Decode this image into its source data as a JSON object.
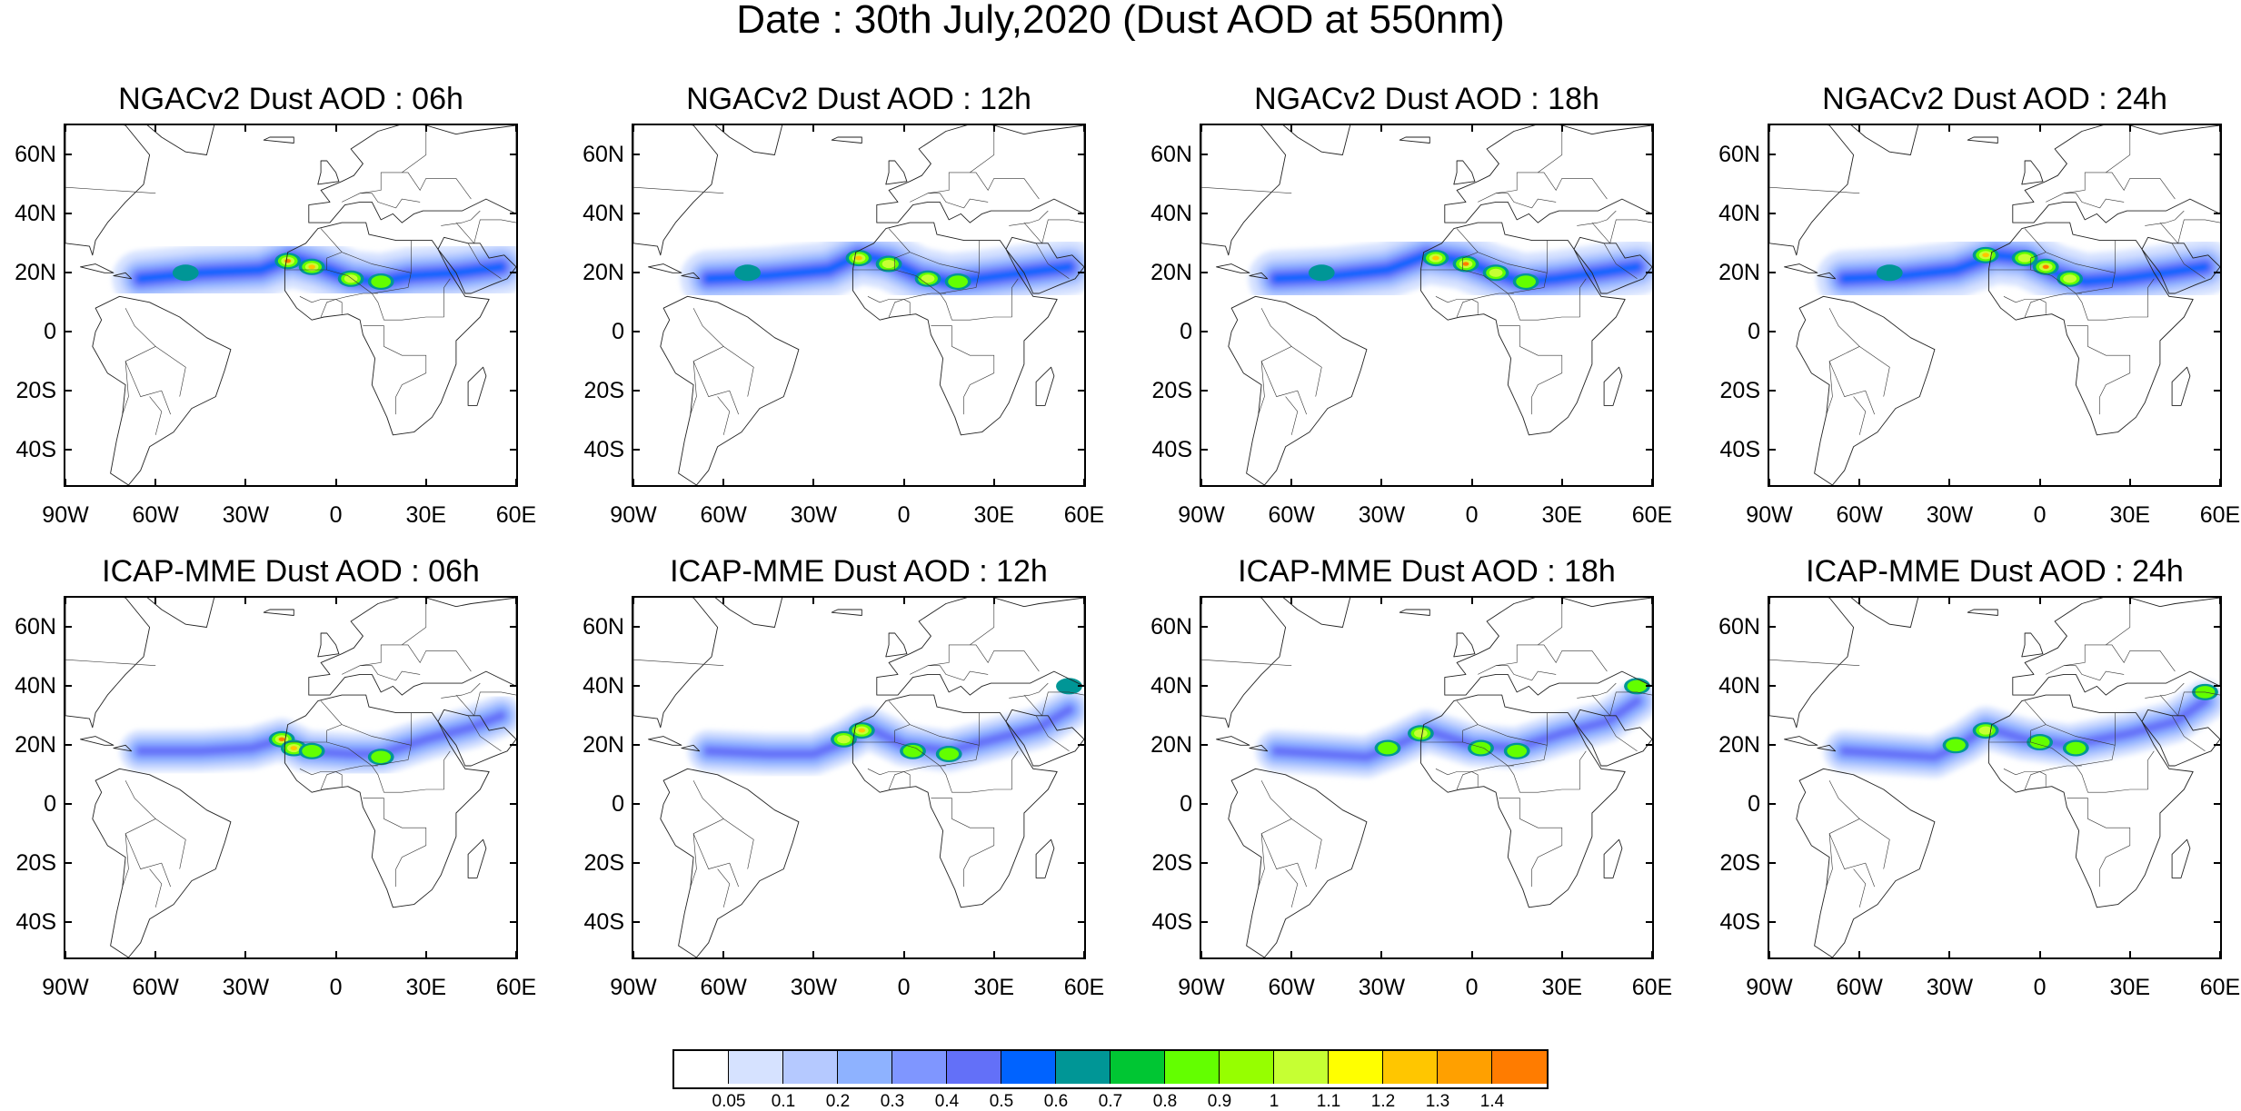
{
  "title": "Date : 30th July,2020 (Dust AOD at 550nm)",
  "axes": {
    "lat_ticks": [
      {
        "value": 60,
        "label": "60N"
      },
      {
        "value": 40,
        "label": "40N"
      },
      {
        "value": 20,
        "label": "20N"
      },
      {
        "value": 0,
        "label": "0"
      },
      {
        "value": -20,
        "label": "20S"
      },
      {
        "value": -40,
        "label": "40S"
      }
    ],
    "lon_ticks": [
      {
        "value": -90,
        "label": "90W"
      },
      {
        "value": -60,
        "label": "60W"
      },
      {
        "value": -30,
        "label": "30W"
      },
      {
        "value": 0,
        "label": "0"
      },
      {
        "value": 30,
        "label": "30E"
      },
      {
        "value": 60,
        "label": "60E"
      }
    ],
    "lat_range": [
      -52,
      70
    ],
    "lon_range": [
      -90,
      60
    ]
  },
  "panels": [
    {
      "title": "NGACv2 Dust AOD : 06h",
      "model": "NGACv2",
      "hour": "06h"
    },
    {
      "title": "NGACv2 Dust AOD : 12h",
      "model": "NGACv2",
      "hour": "12h"
    },
    {
      "title": "NGACv2 Dust AOD : 18h",
      "model": "NGACv2",
      "hour": "18h"
    },
    {
      "title": "NGACv2 Dust AOD : 24h",
      "model": "NGACv2",
      "hour": "24h"
    },
    {
      "title": "ICAP-MME Dust AOD : 06h",
      "model": "ICAP-MME",
      "hour": "06h"
    },
    {
      "title": "ICAP-MME Dust AOD : 12h",
      "model": "ICAP-MME",
      "hour": "12h"
    },
    {
      "title": "ICAP-MME Dust AOD : 18h",
      "model": "ICAP-MME",
      "hour": "18h"
    },
    {
      "title": "ICAP-MME Dust AOD : 24h",
      "model": "ICAP-MME",
      "hour": "24h"
    }
  ],
  "colorbar": {
    "labels": [
      "0.05",
      "0.1",
      "0.2",
      "0.3",
      "0.4",
      "0.5",
      "0.6",
      "0.7",
      "0.8",
      "0.9",
      "1",
      "1.1",
      "1.2",
      "1.3",
      "1.4"
    ],
    "colors": [
      "#ffffff",
      "#d6e2ff",
      "#b5c9ff",
      "#8eb2ff",
      "#7f96ff",
      "#6370f8",
      "#0063ff",
      "#009696",
      "#00c633",
      "#63ff00",
      "#96ff00",
      "#c6ff33",
      "#ffff00",
      "#ffc600",
      "#ffa000",
      "#ff7c00",
      "#ff1900"
    ]
  },
  "plume_tracks": {
    "NGACv2": [
      [
        [
          -65,
          18
        ],
        [
          -45,
          20
        ],
        [
          -25,
          21
        ],
        [
          -15,
          25
        ],
        [
          -5,
          22
        ],
        [
          5,
          18
        ],
        [
          15,
          17
        ],
        [
          25,
          19
        ],
        [
          40,
          20
        ],
        [
          55,
          22
        ]
      ],
      [
        [
          -65,
          18
        ],
        [
          -45,
          19
        ],
        [
          -25,
          21
        ],
        [
          -15,
          26
        ],
        [
          -5,
          24
        ],
        [
          5,
          19
        ],
        [
          15,
          17
        ],
        [
          25,
          18
        ],
        [
          40,
          20
        ],
        [
          55,
          22
        ]
      ],
      [
        [
          -65,
          18
        ],
        [
          -45,
          19
        ],
        [
          -28,
          21
        ],
        [
          -15,
          26
        ],
        [
          -3,
          24
        ],
        [
          7,
          20
        ],
        [
          17,
          17
        ],
        [
          28,
          18
        ],
        [
          42,
          20
        ],
        [
          55,
          22
        ]
      ],
      [
        [
          -65,
          18
        ],
        [
          -45,
          19
        ],
        [
          -28,
          21
        ],
        [
          -15,
          26
        ],
        [
          -5,
          25
        ],
        [
          5,
          20
        ],
        [
          15,
          17
        ],
        [
          28,
          18
        ],
        [
          42,
          20
        ],
        [
          55,
          22
        ]
      ]
    ],
    "ICAP-MME": [
      [
        [
          -65,
          18
        ],
        [
          -45,
          18
        ],
        [
          -28,
          19
        ],
        [
          -18,
          22
        ],
        [
          -10,
          18
        ],
        [
          5,
          17
        ],
        [
          15,
          17
        ],
        [
          30,
          22
        ],
        [
          45,
          26
        ],
        [
          55,
          30
        ]
      ],
      [
        [
          -65,
          18
        ],
        [
          -45,
          17
        ],
        [
          -30,
          17
        ],
        [
          -20,
          21
        ],
        [
          -12,
          26
        ],
        [
          0,
          20
        ],
        [
          15,
          18
        ],
        [
          30,
          22
        ],
        [
          45,
          26
        ],
        [
          55,
          32
        ]
      ],
      [
        [
          -65,
          18
        ],
        [
          -50,
          17
        ],
        [
          -35,
          16
        ],
        [
          -25,
          20
        ],
        [
          -15,
          25
        ],
        [
          0,
          20
        ],
        [
          15,
          19
        ],
        [
          30,
          24
        ],
        [
          45,
          28
        ],
        [
          55,
          35
        ]
      ],
      [
        [
          -65,
          18
        ],
        [
          -50,
          17
        ],
        [
          -35,
          16
        ],
        [
          -25,
          21
        ],
        [
          -18,
          26
        ],
        [
          -5,
          22
        ],
        [
          10,
          20
        ],
        [
          30,
          24
        ],
        [
          45,
          28
        ],
        [
          55,
          35
        ]
      ]
    ]
  },
  "hotspots": {
    "NGACv2": [
      [
        {
          "lon": -16,
          "lat": 24,
          "level": 16
        },
        {
          "lon": -8,
          "lat": 22,
          "level": 13
        },
        {
          "lon": 5,
          "lat": 18,
          "level": 11
        },
        {
          "lon": 15,
          "lat": 17,
          "level": 10
        },
        {
          "lon": -50,
          "lat": 20,
          "level": 7
        }
      ],
      [
        {
          "lon": -15,
          "lat": 25,
          "level": 14
        },
        {
          "lon": -5,
          "lat": 23,
          "level": 12
        },
        {
          "lon": 8,
          "lat": 18,
          "level": 11
        },
        {
          "lon": 18,
          "lat": 17,
          "level": 10
        },
        {
          "lon": -52,
          "lat": 20,
          "level": 7
        }
      ],
      [
        {
          "lon": -12,
          "lat": 25,
          "level": 14
        },
        {
          "lon": -2,
          "lat": 23,
          "level": 16
        },
        {
          "lon": 8,
          "lat": 20,
          "level": 12
        },
        {
          "lon": 18,
          "lat": 17,
          "level": 10
        },
        {
          "lon": -50,
          "lat": 20,
          "level": 7
        }
      ],
      [
        {
          "lon": -18,
          "lat": 26,
          "level": 13
        },
        {
          "lon": -5,
          "lat": 25,
          "level": 12
        },
        {
          "lon": 2,
          "lat": 22,
          "level": 16
        },
        {
          "lon": 10,
          "lat": 18,
          "level": 12
        },
        {
          "lon": -50,
          "lat": 20,
          "level": 7
        }
      ]
    ],
    "ICAP-MME": [
      [
        {
          "lon": -18,
          "lat": 22,
          "level": 16
        },
        {
          "lon": -14,
          "lat": 19,
          "level": 13
        },
        {
          "lon": -8,
          "lat": 18,
          "level": 10
        },
        {
          "lon": 15,
          "lat": 16,
          "level": 9
        }
      ],
      [
        {
          "lon": -20,
          "lat": 22,
          "level": 12
        },
        {
          "lon": -14,
          "lat": 25,
          "level": 14
        },
        {
          "lon": 3,
          "lat": 18,
          "level": 9
        },
        {
          "lon": 15,
          "lat": 17,
          "level": 9
        },
        {
          "lon": 55,
          "lat": 40,
          "level": 7
        }
      ],
      [
        {
          "lon": -28,
          "lat": 19,
          "level": 10
        },
        {
          "lon": -17,
          "lat": 24,
          "level": 11
        },
        {
          "lon": 3,
          "lat": 19,
          "level": 9
        },
        {
          "lon": 15,
          "lat": 18,
          "level": 9
        },
        {
          "lon": 55,
          "lat": 40,
          "level": 9
        }
      ],
      [
        {
          "lon": -28,
          "lat": 20,
          "level": 10
        },
        {
          "lon": -18,
          "lat": 25,
          "level": 11
        },
        {
          "lon": 0,
          "lat": 21,
          "level": 9
        },
        {
          "lon": 12,
          "lat": 19,
          "level": 9
        },
        {
          "lon": 55,
          "lat": 38,
          "level": 9
        }
      ]
    ]
  },
  "coastlines": {
    "north_america": [
      [
        -90,
        70
      ],
      [
        -80,
        72
      ],
      [
        -70,
        70
      ],
      [
        -62,
        60
      ],
      [
        -64,
        50
      ],
      [
        -70,
        44
      ],
      [
        -76,
        37
      ],
      [
        -80,
        31
      ],
      [
        -81,
        26
      ],
      [
        -82,
        29
      ],
      [
        -90,
        30
      ],
      [
        -90,
        70
      ]
    ],
    "south_america": [
      [
        -80,
        8
      ],
      [
        -72,
        12
      ],
      [
        -62,
        10
      ],
      [
        -52,
        5
      ],
      [
        -43,
        -2
      ],
      [
        -35,
        -6
      ],
      [
        -37,
        -13
      ],
      [
        -40,
        -22
      ],
      [
        -48,
        -26
      ],
      [
        -54,
        -34
      ],
      [
        -62,
        -39
      ],
      [
        -65,
        -47
      ],
      [
        -69,
        -52
      ],
      [
        -75,
        -48
      ],
      [
        -73,
        -37
      ],
      [
        -71,
        -28
      ],
      [
        -70,
        -18
      ],
      [
        -76,
        -14
      ],
      [
        -81,
        -5
      ],
      [
        -80,
        0
      ],
      [
        -78,
        4
      ],
      [
        -80,
        8
      ]
    ],
    "greenland": [
      [
        -73,
        78
      ],
      [
        -55,
        77
      ],
      [
        -40,
        72
      ],
      [
        -43,
        60
      ],
      [
        -50,
        61
      ],
      [
        -58,
        66
      ],
      [
        -65,
        72
      ],
      [
        -73,
        78
      ]
    ],
    "africa": [
      [
        -17,
        21
      ],
      [
        -16,
        27
      ],
      [
        -10,
        30
      ],
      [
        -6,
        35
      ],
      [
        2,
        37
      ],
      [
        10,
        37
      ],
      [
        11,
        33
      ],
      [
        20,
        31
      ],
      [
        32,
        31
      ],
      [
        34,
        28
      ],
      [
        38,
        20
      ],
      [
        43,
        12
      ],
      [
        51,
        11
      ],
      [
        48,
        5
      ],
      [
        40,
        -3
      ],
      [
        40,
        -11
      ],
      [
        35,
        -24
      ],
      [
        32,
        -29
      ],
      [
        26,
        -34
      ],
      [
        19,
        -35
      ],
      [
        17,
        -29
      ],
      [
        12,
        -18
      ],
      [
        13,
        -9
      ],
      [
        9,
        -1
      ],
      [
        8,
        4
      ],
      [
        4,
        6
      ],
      [
        -4,
        5
      ],
      [
        -8,
        4
      ],
      [
        -13,
        8
      ],
      [
        -17,
        14
      ],
      [
        -17,
        21
      ]
    ],
    "europe": [
      [
        -9,
        37
      ],
      [
        -9,
        43
      ],
      [
        -2,
        44
      ],
      [
        -5,
        48
      ],
      [
        2,
        51
      ],
      [
        6,
        53
      ],
      [
        9,
        57
      ],
      [
        5,
        62
      ],
      [
        14,
        68
      ],
      [
        24,
        71
      ],
      [
        30,
        70
      ],
      [
        40,
        67
      ],
      [
        45,
        68
      ],
      [
        60,
        70
      ],
      [
        60,
        40
      ],
      [
        50,
        45
      ],
      [
        42,
        41
      ],
      [
        36,
        41
      ],
      [
        29,
        41
      ],
      [
        26,
        40
      ],
      [
        22,
        37
      ],
      [
        19,
        40
      ],
      [
        15,
        38
      ],
      [
        12,
        44
      ],
      [
        8,
        44
      ],
      [
        3,
        43
      ],
      [
        -2,
        37
      ],
      [
        -9,
        37
      ]
    ],
    "arabia": [
      [
        34,
        28
      ],
      [
        36,
        32
      ],
      [
        44,
        30
      ],
      [
        48,
        30
      ],
      [
        51,
        25
      ],
      [
        56,
        26
      ],
      [
        60,
        22
      ],
      [
        57,
        18
      ],
      [
        52,
        16
      ],
      [
        45,
        13
      ],
      [
        43,
        13
      ],
      [
        40,
        20
      ],
      [
        34,
        28
      ]
    ],
    "uk": [
      [
        -6,
        50
      ],
      [
        1,
        51
      ],
      [
        0,
        54
      ],
      [
        -3,
        58
      ],
      [
        -5,
        58
      ],
      [
        -5,
        54
      ],
      [
        -6,
        50
      ]
    ],
    "iceland": [
      [
        -24,
        65
      ],
      [
        -14,
        64
      ],
      [
        -14,
        66
      ],
      [
        -22,
        66
      ],
      [
        -24,
        65
      ]
    ],
    "madagascar": [
      [
        44,
        -25
      ],
      [
        47,
        -25
      ],
      [
        50,
        -15
      ],
      [
        49,
        -12
      ],
      [
        44,
        -17
      ],
      [
        44,
        -25
      ]
    ],
    "cuba": [
      [
        -85,
        22
      ],
      [
        -77,
        20
      ],
      [
        -74,
        20
      ],
      [
        -80,
        23
      ],
      [
        -85,
        22
      ]
    ],
    "hispaniola": [
      [
        -74,
        19
      ],
      [
        -68,
        18
      ],
      [
        -70,
        20
      ],
      [
        -74,
        19
      ]
    ]
  },
  "borders": [
    [
      [
        -17,
        21
      ],
      [
        -3,
        21
      ],
      [
        -3,
        25
      ],
      [
        2,
        27
      ]
    ],
    [
      [
        -5,
        35
      ],
      [
        2,
        27
      ],
      [
        12,
        23
      ],
      [
        25,
        20
      ]
    ],
    [
      [
        -3,
        21
      ],
      [
        4,
        19
      ],
      [
        12,
        13
      ],
      [
        24,
        15
      ],
      [
        25,
        20
      ],
      [
        25,
        31
      ]
    ],
    [
      [
        12,
        13
      ],
      [
        14,
        10
      ],
      [
        16,
        4
      ],
      [
        22,
        4
      ],
      [
        30,
        5
      ],
      [
        36,
        5
      ]
    ],
    [
      [
        9,
        2
      ],
      [
        16,
        2
      ],
      [
        16,
        -5
      ],
      [
        22,
        -8
      ],
      [
        30,
        -8
      ],
      [
        30,
        -14
      ],
      [
        22,
        -18
      ],
      [
        20,
        -22
      ],
      [
        20,
        -28
      ]
    ],
    [
      [
        -12,
        12
      ],
      [
        -8,
        10
      ],
      [
        -5,
        11
      ],
      [
        0,
        11
      ],
      [
        4,
        12
      ],
      [
        9,
        13
      ],
      [
        14,
        13
      ]
    ],
    [
      [
        -5,
        5
      ],
      [
        -3,
        10
      ],
      [
        0,
        11
      ],
      [
        2,
        10
      ],
      [
        2,
        6
      ]
    ],
    [
      [
        36,
        5
      ],
      [
        36,
        15
      ],
      [
        38,
        18
      ]
    ],
    [
      [
        -70,
        8
      ],
      [
        -67,
        2
      ],
      [
        -60,
        -5
      ],
      [
        -70,
        -10
      ],
      [
        -65,
        -22
      ],
      [
        -58,
        -20
      ],
      [
        -55,
        -28
      ]
    ],
    [
      [
        -70,
        -10
      ],
      [
        -69,
        -22
      ],
      [
        -71,
        -28
      ]
    ],
    [
      [
        -60,
        -5
      ],
      [
        -50,
        -12
      ],
      [
        -52,
        -22
      ]
    ],
    [
      [
        -60,
        -35
      ],
      [
        -58,
        -27
      ],
      [
        -62,
        -22
      ]
    ],
    [
      [
        2,
        44
      ],
      [
        8,
        47
      ],
      [
        15,
        48
      ],
      [
        15,
        54
      ],
      [
        24,
        54
      ],
      [
        28,
        48
      ],
      [
        30,
        52
      ],
      [
        40,
        52
      ],
      [
        45,
        45
      ]
    ],
    [
      [
        8,
        47
      ],
      [
        12,
        47
      ],
      [
        14,
        44
      ],
      [
        20,
        42
      ],
      [
        22,
        45
      ],
      [
        28,
        44
      ]
    ],
    [
      [
        22,
        54
      ],
      [
        30,
        60
      ],
      [
        30,
        70
      ]
    ],
    [
      [
        -90,
        49
      ],
      [
        -60,
        47
      ]
    ],
    [
      [
        35,
        36
      ],
      [
        42,
        37
      ],
      [
        45,
        38
      ],
      [
        48,
        41
      ]
    ],
    [
      [
        40,
        37
      ],
      [
        46,
        30
      ],
      [
        48,
        38
      ],
      [
        55,
        38
      ],
      [
        60,
        37
      ]
    ],
    [
      [
        44,
        30
      ],
      [
        48,
        23
      ],
      [
        55,
        18
      ]
    ]
  ]
}
